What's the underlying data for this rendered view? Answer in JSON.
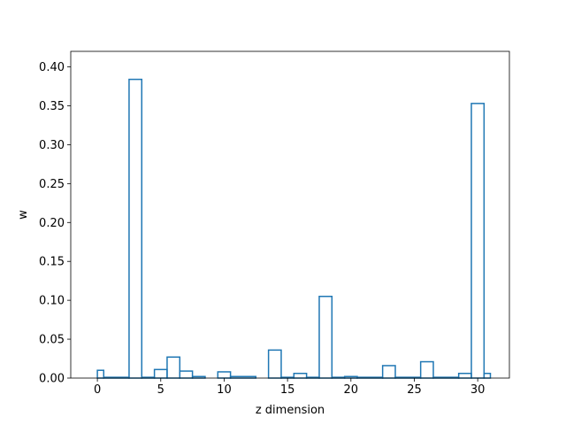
{
  "chart_data": {
    "type": "bar",
    "style": "step-histogram",
    "xlabel": "z dimension",
    "ylabel": "w",
    "xlim": [
      -2.1,
      32.5
    ],
    "ylim": [
      0,
      0.42
    ],
    "x_ticks": [
      0,
      5,
      10,
      15,
      20,
      25,
      30
    ],
    "x_tick_labels": [
      "0",
      "5",
      "10",
      "15",
      "20",
      "25",
      "30"
    ],
    "y_ticks": [
      0.0,
      0.05,
      0.1,
      0.15,
      0.2,
      0.25,
      0.3,
      0.35,
      0.4
    ],
    "y_tick_labels": [
      "0.00",
      "0.05",
      "0.10",
      "0.15",
      "0.20",
      "0.25",
      "0.30",
      "0.35",
      "0.40"
    ],
    "grid": false,
    "line_color": "#1f77b4",
    "series": [
      {
        "bins": [
          [
            0,
            0.5,
            0.01
          ],
          [
            0.5,
            2.5,
            0.001
          ],
          [
            2.5,
            3.5,
            0.384
          ],
          [
            3.5,
            4.5,
            0.001
          ],
          [
            4.5,
            5.5,
            0.011
          ],
          [
            5.5,
            6.5,
            0.027
          ],
          [
            6.5,
            7.5,
            0.009
          ],
          [
            7.5,
            8.5,
            0.002
          ],
          [
            8.5,
            9.5,
            0.0
          ],
          [
            9.5,
            10.5,
            0.008
          ],
          [
            10.5,
            12.5,
            0.002
          ],
          [
            12.5,
            13.5,
            0.0
          ],
          [
            13.5,
            14.5,
            0.036
          ],
          [
            14.5,
            15.5,
            0.001
          ],
          [
            15.5,
            16.5,
            0.006
          ],
          [
            16.5,
            17.5,
            0.001
          ],
          [
            17.5,
            18.5,
            0.105
          ],
          [
            18.5,
            19.5,
            0.001
          ],
          [
            19.5,
            20.5,
            0.002
          ],
          [
            20.5,
            22.5,
            0.001
          ],
          [
            22.5,
            23.5,
            0.016
          ],
          [
            23.5,
            25.5,
            0.001
          ],
          [
            25.5,
            26.5,
            0.021
          ],
          [
            26.5,
            28.5,
            0.001
          ],
          [
            28.5,
            29.5,
            0.006
          ],
          [
            29.5,
            30.5,
            0.353
          ],
          [
            30.5,
            31,
            0.006
          ]
        ]
      }
    ]
  }
}
